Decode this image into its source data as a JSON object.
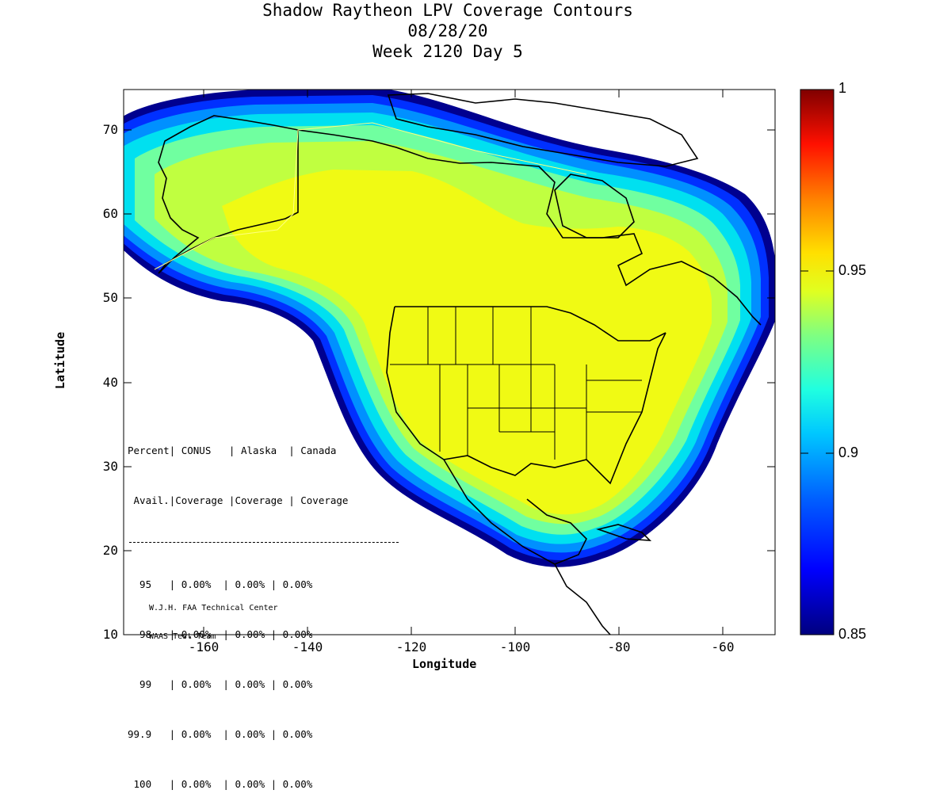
{
  "title": {
    "line1": "Shadow Raytheon LPV Coverage Contours",
    "line2": "08/28/20",
    "line3": "Week 2120 Day 5"
  },
  "axes": {
    "xlabel": "Longitude",
    "ylabel": "Latitude",
    "x_ticks": [
      "-160",
      "-140",
      "-120",
      "-100",
      "-80",
      "-60"
    ],
    "y_ticks": [
      "10",
      "20",
      "30",
      "40",
      "50",
      "60",
      "70"
    ],
    "xlim": [
      -175,
      -50
    ],
    "ylim": [
      10,
      75
    ]
  },
  "colorbar": {
    "labels": [
      "1",
      "0.95",
      "0.9",
      "0.85"
    ],
    "range": [
      0.85,
      1.0
    ],
    "colormap": "jet"
  },
  "table": {
    "header1": "Percent| CONUS   | Alaska  | Canada",
    "header2": " Avail.|Coverage |Coverage | Coverage",
    "rows": [
      "  95   | 0.00%  | 0.00% | 0.00%",
      "  98   | 0.00%  | 0.00% | 0.00%",
      "  99   | 0.00%  | 0.00% | 0.00%",
      "99.9   | 0.00%  | 0.00% | 0.00%",
      " 100   | 0.00%  | 0.00% | 0.00%"
    ]
  },
  "credit": {
    "line1": "W.J.H. FAA Technical Center",
    "line2": "WAAS Test Team"
  },
  "colors": {
    "core": "#f0fa14",
    "outer": "#00007f",
    "background": "#ffffff"
  }
}
